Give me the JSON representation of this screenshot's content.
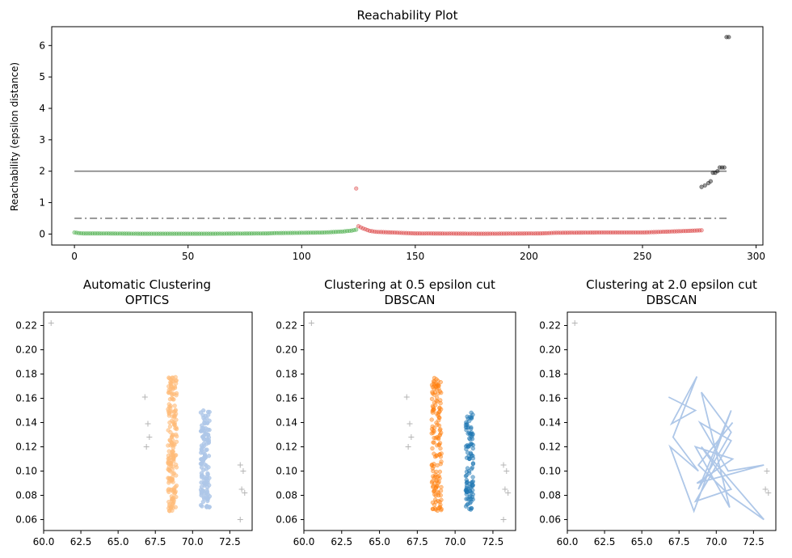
{
  "colors": {
    "green": "#2ca02c",
    "red": "#d62728",
    "black": "#000000",
    "orange": "#ff7f0e",
    "blue": "#1f77b4",
    "light_orange": "#ffbb78",
    "light_blue": "#aec7e8",
    "gray_line": "#808080",
    "noise": "#cccccc"
  },
  "chart_data": [
    {
      "id": "reach",
      "type": "scatter",
      "title": "Reachability Plot",
      "xlabel": "",
      "ylabel": "Reachability (epsilon distance)",
      "xlim": [
        -10,
        303
      ],
      "ylim": [
        -0.35,
        6.6
      ],
      "xticks": [
        0,
        50,
        100,
        150,
        200,
        250,
        300
      ],
      "yticks": [
        0,
        1,
        2,
        3,
        4,
        5,
        6
      ],
      "hlines": [
        {
          "y": 2.0,
          "x": [
            0,
            287
          ],
          "style": "solid"
        },
        {
          "y": 0.5,
          "x": [
            0,
            287
          ],
          "style": "dashdot"
        }
      ],
      "series": [
        {
          "color": "green",
          "range": [
            0,
            124
          ],
          "values": [
            [
              0,
              0.05
            ],
            [
              2,
              0.03
            ],
            [
              4,
              0.02
            ],
            [
              10,
              0.02
            ],
            [
              30,
              0.01
            ],
            [
              60,
              0.01
            ],
            [
              85,
              0.02
            ],
            [
              88,
              0.03
            ],
            [
              100,
              0.04
            ],
            [
              110,
              0.05
            ],
            [
              118,
              0.08
            ],
            [
              122,
              0.11
            ],
            [
              124,
              0.14
            ]
          ]
        },
        {
          "color": "red",
          "range": [
            124,
            276
          ],
          "values": [
            [
              124,
              1.45
            ],
            [
              125,
              0.25
            ],
            [
              127,
              0.18
            ],
            [
              130,
              0.1
            ],
            [
              133,
              0.07
            ],
            [
              140,
              0.05
            ],
            [
              150,
              0.02
            ],
            [
              180,
              0.01
            ],
            [
              205,
              0.02
            ],
            [
              212,
              0.04
            ],
            [
              230,
              0.05
            ],
            [
              250,
              0.05
            ],
            [
              262,
              0.08
            ],
            [
              270,
              0.1
            ],
            [
              276,
              0.12
            ]
          ]
        },
        {
          "color": "black",
          "points": [
            [
              276,
              1.5
            ],
            [
              277.5,
              1.55
            ],
            [
              279,
              1.62
            ],
            [
              280,
              1.68
            ],
            [
              281,
              1.95
            ],
            [
              282,
              1.95
            ],
            [
              283,
              2.0
            ],
            [
              284,
              2.12
            ],
            [
              285,
              2.12
            ],
            [
              286,
              2.12
            ],
            [
              287,
              6.27
            ],
            [
              288,
              6.27
            ]
          ]
        }
      ]
    },
    {
      "id": "optics",
      "type": "scatter",
      "title": "Automatic Clustering\nOPTICS",
      "xlim": [
        60,
        74
      ],
      "ylim": [
        0.051,
        0.231
      ],
      "xticks": [
        "60.0",
        "62.5",
        "65.0",
        "67.5",
        "70.0",
        "72.5"
      ],
      "yticks": [
        "0.06",
        "0.08",
        "0.10",
        "0.12",
        "0.14",
        "0.16",
        "0.18",
        "0.20",
        "0.22"
      ],
      "clusters": [
        {
          "color": "light_orange",
          "x_range": [
            68.35,
            68.95
          ],
          "y_range": [
            0.067,
            0.178
          ],
          "alpha": 0.6,
          "n": 180
        },
        {
          "color": "light_blue",
          "x_range": [
            70.55,
            71.15
          ],
          "y_range": [
            0.07,
            0.15
          ],
          "alpha": 0.8,
          "n": 130
        }
      ],
      "noise": [
        [
          60.5,
          0.222
        ],
        [
          66.8,
          0.161
        ],
        [
          67.0,
          0.139
        ],
        [
          67.1,
          0.128
        ],
        [
          66.9,
          0.12
        ],
        [
          73.2,
          0.105
        ],
        [
          73.4,
          0.1
        ],
        [
          73.3,
          0.085
        ],
        [
          73.5,
          0.082
        ],
        [
          73.2,
          0.06
        ]
      ]
    },
    {
      "id": "eps05",
      "type": "scatter",
      "title": "Clustering at 0.5 epsilon cut\nDBSCAN",
      "xlim": [
        60,
        74
      ],
      "ylim": [
        0.051,
        0.231
      ],
      "xticks": [
        "60.0",
        "62.5",
        "65.0",
        "67.5",
        "70.0",
        "72.5"
      ],
      "yticks": [
        "0.06",
        "0.08",
        "0.10",
        "0.12",
        "0.14",
        "0.16",
        "0.18",
        "0.20",
        "0.22"
      ],
      "clusters": [
        {
          "color": "orange",
          "x_range": [
            68.45,
            69.1
          ],
          "y_range": [
            0.067,
            0.178
          ],
          "alpha": 0.45,
          "n": 150
        },
        {
          "color": "blue",
          "x_range": [
            70.7,
            71.2
          ],
          "y_range": [
            0.068,
            0.15
          ],
          "alpha": 0.5,
          "n": 110
        }
      ],
      "noise": [
        [
          60.5,
          0.222
        ],
        [
          66.8,
          0.161
        ],
        [
          67.0,
          0.139
        ],
        [
          67.1,
          0.128
        ],
        [
          66.9,
          0.12
        ],
        [
          73.2,
          0.105
        ],
        [
          73.4,
          0.1
        ],
        [
          73.3,
          0.085
        ],
        [
          73.5,
          0.082
        ],
        [
          73.2,
          0.06
        ]
      ]
    },
    {
      "id": "eps20",
      "type": "line",
      "title": "Clustering at 2.0 epsilon cut\nDBSCAN",
      "xlim": [
        60,
        74
      ],
      "ylim": [
        0.051,
        0.231
      ],
      "xticks": [
        "60.0",
        "62.5",
        "65.0",
        "67.5",
        "70.0",
        "72.5"
      ],
      "yticks": [
        "0.06",
        "0.08",
        "0.10",
        "0.12",
        "0.14",
        "0.16",
        "0.18",
        "0.20",
        "0.22"
      ],
      "line_color": "light_blue",
      "path": [
        [
          66.8,
          0.161
        ],
        [
          68.6,
          0.15
        ],
        [
          67.0,
          0.139
        ],
        [
          68.7,
          0.178
        ],
        [
          67.1,
          0.128
        ],
        [
          68.8,
          0.1
        ],
        [
          66.9,
          0.12
        ],
        [
          68.5,
          0.067
        ],
        [
          71.0,
          0.15
        ],
        [
          68.8,
          0.085
        ],
        [
          71.0,
          0.132
        ],
        [
          69.0,
          0.165
        ],
        [
          70.9,
          0.07
        ],
        [
          68.6,
          0.12
        ],
        [
          71.1,
          0.11
        ],
        [
          68.7,
          0.09
        ],
        [
          73.2,
          0.105
        ],
        [
          70.8,
          0.1
        ],
        [
          68.9,
          0.14
        ],
        [
          71.0,
          0.125
        ],
        [
          68.6,
          0.075
        ],
        [
          71.0,
          0.085
        ],
        [
          69.0,
          0.12
        ],
        [
          73.2,
          0.06
        ],
        [
          70.9,
          0.08
        ],
        [
          68.8,
          0.105
        ],
        [
          71.1,
          0.14
        ]
      ],
      "noise": [
        [
          60.5,
          0.222
        ],
        [
          73.4,
          0.1
        ],
        [
          73.3,
          0.085
        ],
        [
          73.5,
          0.082
        ]
      ]
    }
  ]
}
